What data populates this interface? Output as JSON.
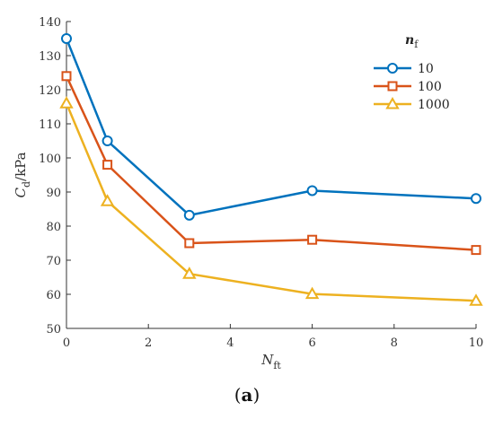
{
  "chart_data": {
    "type": "line",
    "x": [
      0,
      1,
      3,
      6,
      10
    ],
    "xlim": [
      0,
      10
    ],
    "ylim": [
      50,
      140
    ],
    "xticks": [
      "0",
      "2",
      "4",
      "6",
      "8",
      "10"
    ],
    "yticks": [
      "50",
      "60",
      "70",
      "80",
      "90",
      "100",
      "110",
      "120",
      "130",
      "140"
    ],
    "xlabel": {
      "main": "N",
      "sub": "ft"
    },
    "ylabel": {
      "main": "C",
      "sub": "d",
      "rest": "/kPa"
    },
    "legend": {
      "title_main": "n",
      "title_sub": "f",
      "position": "top-right"
    },
    "grid": false,
    "series": [
      {
        "name": "10",
        "marker": "circle",
        "color": "#0072BD",
        "values": [
          135,
          105,
          83.2,
          90.4,
          88.1
        ]
      },
      {
        "name": "100",
        "marker": "square",
        "color": "#D95319",
        "values": [
          124,
          98,
          75,
          76,
          73
        ]
      },
      {
        "name": "1000",
        "marker": "triangle",
        "color": "#EDB120",
        "values": [
          116,
          87.3,
          66,
          60.1,
          58.1
        ]
      }
    ]
  },
  "caption": {
    "open": "(",
    "letter": "a",
    "close": ")"
  }
}
